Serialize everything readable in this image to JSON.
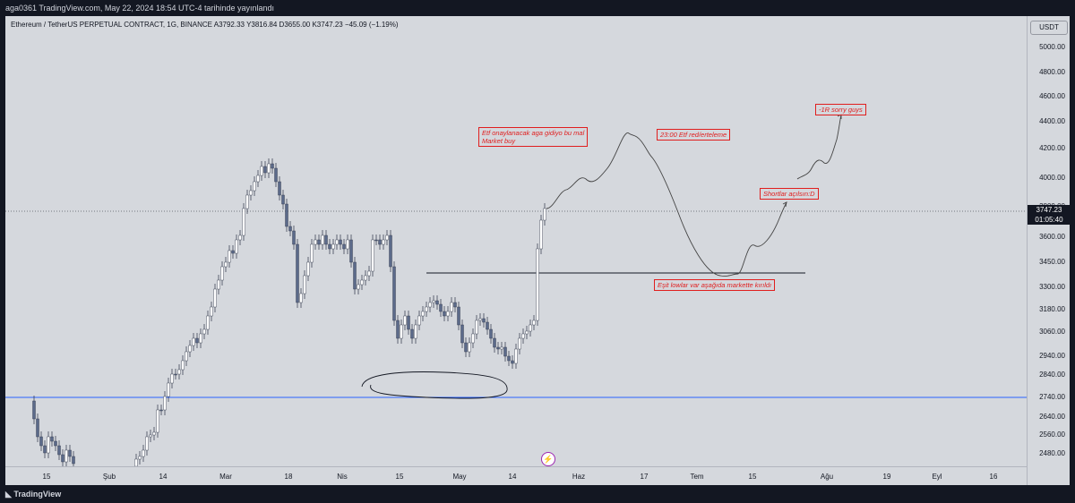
{
  "header": {
    "publish_text": "aga0361 TradingView.com, May 22, 2024 18:54 UTC-4 tarihinde yayınlandı"
  },
  "legend": {
    "symbol_text": "Ethereum / TetherUS PERPETUAL CONTRACT, 1G, BINANCE  A3792.33  Y3816.84  D3655.00  K3747.23  −45.09 (−1.19%)"
  },
  "price_axis": {
    "currency": "USDT",
    "labels": [
      "5000.00",
      "4800.00",
      "4600.00",
      "4400.00",
      "4200.00",
      "4000.00",
      "3800.00",
      "3600.00",
      "3450.00",
      "3300.00",
      "3180.00",
      "3060.00",
      "2940.00",
      "2840.00",
      "2740.00",
      "2640.00",
      "2560.00",
      "2480.00"
    ],
    "current_price": "3747.23",
    "countdown": "01:05:40"
  },
  "time_axis": {
    "labels": [
      "15",
      "Şub",
      "14",
      "Mar",
      "18",
      "Nis",
      "15",
      "May",
      "14",
      "Haz",
      "17",
      "Tem",
      "15",
      "Ağu",
      "19",
      "Eyl",
      "16"
    ]
  },
  "annotations": {
    "etf_note_line1": "Etf onaylanacak aga gidiyo bu mal",
    "etf_note_line2": "Market buy",
    "red_note": "23:00 Etf red/erteleme",
    "sorry_note": "-1R sorry guys",
    "short_note": "Shortlar açılsın:D",
    "lows_note": "Eşit lowlar var aşağıda markette kırıldı"
  },
  "footer": {
    "brand": "TradingView"
  },
  "colors": {
    "up": "#ffffff",
    "down": "#5b6a8a",
    "support_line": "#2962ff",
    "annotation": "#e01e1e"
  }
}
